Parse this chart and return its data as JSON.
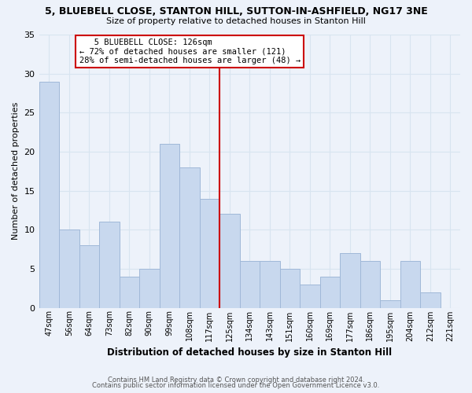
{
  "title": "5, BLUEBELL CLOSE, STANTON HILL, SUTTON-IN-ASHFIELD, NG17 3NE",
  "subtitle": "Size of property relative to detached houses in Stanton Hill",
  "xlabel": "Distribution of detached houses by size in Stanton Hill",
  "ylabel": "Number of detached properties",
  "bar_labels": [
    "47sqm",
    "56sqm",
    "64sqm",
    "73sqm",
    "82sqm",
    "90sqm",
    "99sqm",
    "108sqm",
    "117sqm",
    "125sqm",
    "134sqm",
    "143sqm",
    "151sqm",
    "160sqm",
    "169sqm",
    "177sqm",
    "186sqm",
    "195sqm",
    "204sqm",
    "212sqm",
    "221sqm"
  ],
  "bar_values": [
    29,
    10,
    8,
    11,
    4,
    5,
    21,
    18,
    14,
    12,
    6,
    6,
    5,
    3,
    4,
    7,
    6,
    1,
    6,
    2,
    0
  ],
  "bar_color": "#c8d8ee",
  "bar_edge_color": "#a0b8d8",
  "ref_line_color": "#cc0000",
  "annotation_title": "5 BLUEBELL CLOSE: 126sqm",
  "annotation_line1": "← 72% of detached houses are smaller (121)",
  "annotation_line2": "28% of semi-detached houses are larger (48) →",
  "annotation_box_color": "#ffffff",
  "annotation_box_edge": "#cc0000",
  "ylim": [
    0,
    35
  ],
  "yticks": [
    0,
    5,
    10,
    15,
    20,
    25,
    30,
    35
  ],
  "grid_color": "#d8e4f0",
  "background_color": "#edf2fa",
  "footer1": "Contains HM Land Registry data © Crown copyright and database right 2024.",
  "footer2": "Contains public sector information licensed under the Open Government Licence v3.0."
}
